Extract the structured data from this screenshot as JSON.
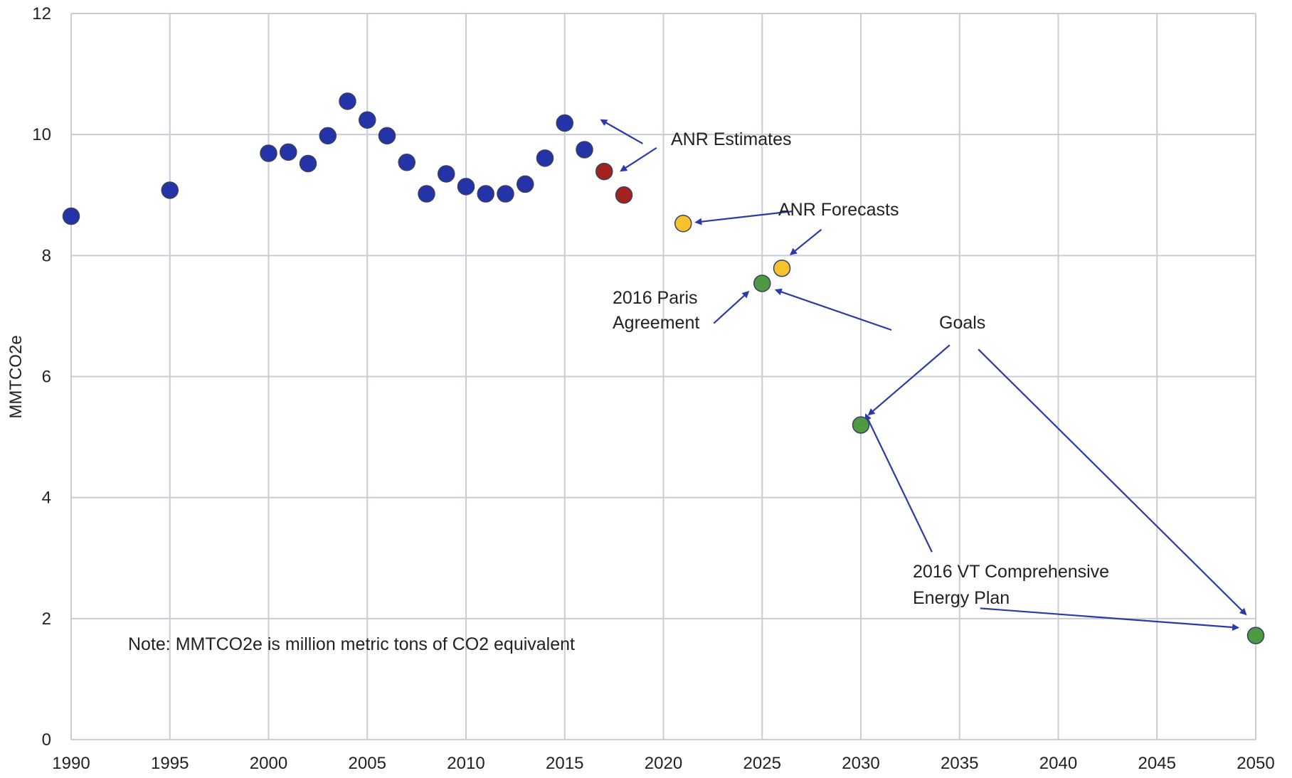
{
  "chart_data": {
    "type": "scatter",
    "title": "",
    "xlabel": "",
    "ylabel": "MMTCO2e",
    "xlim": [
      1990,
      2050
    ],
    "ylim": [
      0,
      12
    ],
    "x_ticks": [
      1990,
      1995,
      2000,
      2005,
      2010,
      2015,
      2020,
      2025,
      2030,
      2035,
      2040,
      2045,
      2050
    ],
    "y_ticks": [
      0,
      2,
      4,
      6,
      8,
      10,
      12
    ],
    "grid": true,
    "series": [
      {
        "color": "#2433a8",
        "points": [
          {
            "x": 1990,
            "y": 8.65
          },
          {
            "x": 1995,
            "y": 9.08
          },
          {
            "x": 2000,
            "y": 9.69
          },
          {
            "x": 2001,
            "y": 9.71
          },
          {
            "x": 2002,
            "y": 9.52
          },
          {
            "x": 2003,
            "y": 9.98
          },
          {
            "x": 2004,
            "y": 10.55
          },
          {
            "x": 2005,
            "y": 10.24
          },
          {
            "x": 2006,
            "y": 9.98
          },
          {
            "x": 2007,
            "y": 9.54
          },
          {
            "x": 2008,
            "y": 9.02
          },
          {
            "x": 2009,
            "y": 9.35
          },
          {
            "x": 2010,
            "y": 9.14
          },
          {
            "x": 2011,
            "y": 9.02
          },
          {
            "x": 2012,
            "y": 9.02
          },
          {
            "x": 2013,
            "y": 9.18
          },
          {
            "x": 2014,
            "y": 9.61
          },
          {
            "x": 2015,
            "y": 10.19
          },
          {
            "x": 2016,
            "y": 9.75
          }
        ]
      },
      {
        "color": "#a1221e",
        "points": [
          {
            "x": 2017,
            "y": 9.39
          },
          {
            "x": 2018,
            "y": 9.0
          }
        ]
      },
      {
        "color": "#f7c22d",
        "points": [
          {
            "x": 2021,
            "y": 8.53
          },
          {
            "x": 2026,
            "y": 7.79
          }
        ]
      },
      {
        "color": "#4e9a43",
        "points": [
          {
            "x": 2025,
            "y": 7.54
          },
          {
            "x": 2030,
            "y": 5.2
          },
          {
            "x": 2050,
            "y": 1.72
          }
        ]
      }
    ],
    "annotations": {
      "anr_estimates": "ANR Estimates",
      "anr_forecasts": "ANR Forecasts",
      "paris_line1": "2016 Paris",
      "paris_line2": "Agreement",
      "goals": "Goals",
      "vt_line1": "2016 VT Comprehensive",
      "vt_line2": "Energy Plan",
      "note": "Note: MMTCO2e is million metric tons of CO2 equivalent"
    }
  }
}
